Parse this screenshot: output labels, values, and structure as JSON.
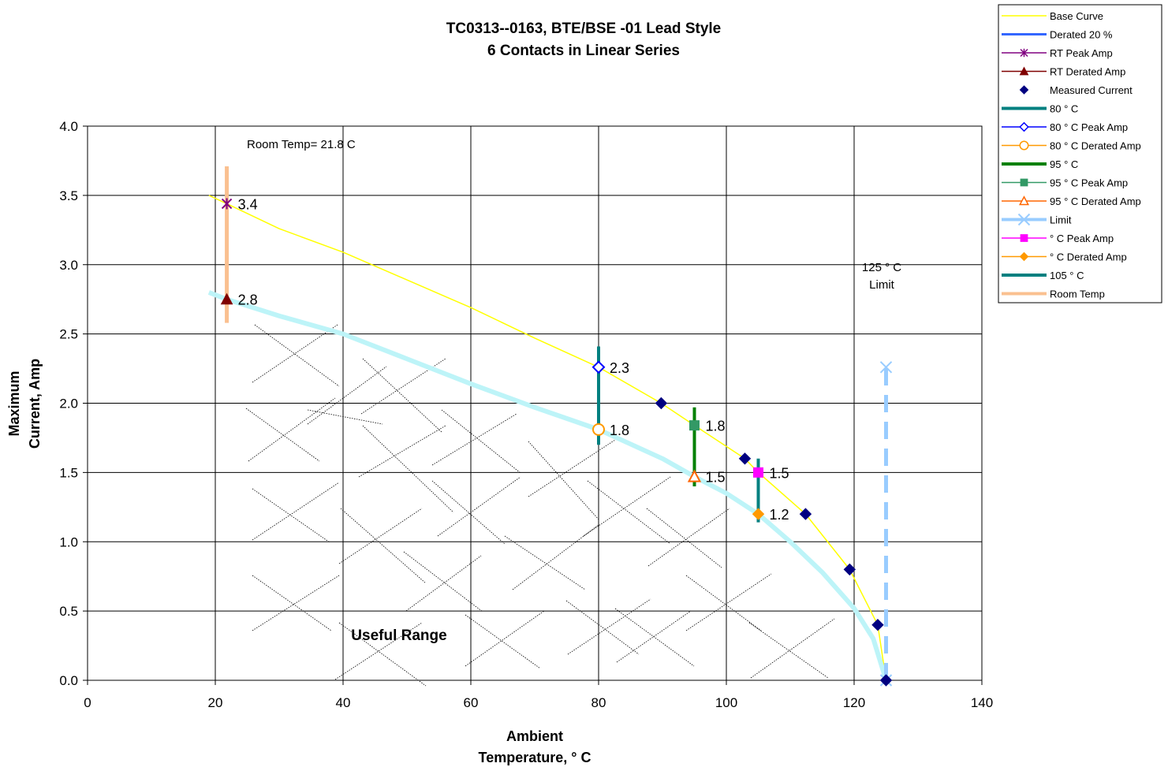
{
  "chart_data": {
    "type": "line",
    "title": "TC0313--0163, BTE/BSE -01 Lead Style",
    "subtitle": "6 Contacts in Linear Series",
    "xlabel": [
      "Ambient",
      "Temperature,  ° C"
    ],
    "ylabel": [
      "Maximum",
      "Current, Amp"
    ],
    "xlim": [
      0,
      140
    ],
    "ylim": [
      0,
      4
    ],
    "x_ticks": [
      "0",
      "20",
      "40",
      "60",
      "80",
      "100",
      "120",
      "140"
    ],
    "y_ticks": [
      "0.0",
      "0.5",
      "1.0",
      "1.5",
      "2.0",
      "2.5",
      "3.0",
      "3.5",
      "4.0"
    ],
    "grid": true,
    "legend_position": "top-right",
    "annotations": {
      "room_temp": "Room Temp= 21.8 C",
      "limit_line1": "125  ° C",
      "limit_line2": "Limit",
      "useful_range": "Useful Range"
    },
    "series": [
      {
        "name": "Base Curve",
        "color": "#ffff00",
        "kind": "line",
        "x": [
          19,
          21.8,
          30,
          40,
          50,
          60,
          70,
          80,
          89.8,
          95,
          102.9,
          105,
          112.4,
          119.3,
          123.7,
          125
        ],
        "y": [
          3.5,
          3.44,
          3.26,
          3.09,
          2.89,
          2.69,
          2.47,
          2.26,
          2.0,
          1.84,
          1.6,
          1.5,
          1.2,
          0.8,
          0.4,
          0.0
        ]
      },
      {
        "name": "Derated 20 %",
        "color": "#bdf4f8",
        "kind": "line",
        "x": [
          19,
          21.8,
          30,
          40,
          50,
          60,
          70,
          80,
          90,
          95,
          100,
          105,
          110,
          115,
          120,
          123,
          125
        ],
        "y": [
          2.8,
          2.75,
          2.63,
          2.5,
          2.32,
          2.14,
          1.97,
          1.81,
          1.6,
          1.47,
          1.35,
          1.2,
          1.0,
          0.78,
          0.52,
          0.3,
          0.0
        ]
      },
      {
        "name": "RT Peak Amp",
        "color": "#800080",
        "kind": "marker",
        "marker": "star",
        "x": [
          21.8
        ],
        "y": [
          3.44
        ],
        "labels": [
          "3.4"
        ]
      },
      {
        "name": "RT Derated Amp",
        "color": "#800000",
        "kind": "marker",
        "marker": "triangle",
        "x": [
          21.8
        ],
        "y": [
          2.75
        ],
        "labels": [
          "2.8"
        ]
      },
      {
        "name": "Measured Current",
        "color": "#000080",
        "kind": "marker",
        "marker": "diamond",
        "x": [
          89.8,
          102.9,
          112.4,
          119.3,
          123.7,
          125
        ],
        "y": [
          2.0,
          1.6,
          1.2,
          0.8,
          0.4,
          0.0
        ]
      },
      {
        "name": "80 ° C",
        "color": "#008080",
        "kind": "vline",
        "x": [
          80,
          80
        ],
        "y": [
          1.7,
          2.41
        ]
      },
      {
        "name": "80  ° C Peak Amp",
        "color": "#0000ff",
        "kind": "marker",
        "marker": "diamond-open",
        "x": [
          80
        ],
        "y": [
          2.26
        ],
        "labels": [
          "2.3"
        ]
      },
      {
        "name": "80  ° C Derated Amp",
        "color": "#ff9900",
        "kind": "marker",
        "marker": "circle-open",
        "x": [
          80
        ],
        "y": [
          1.81
        ],
        "labels": [
          "1.8"
        ]
      },
      {
        "name": "95  ° C",
        "color": "#008000",
        "kind": "vline",
        "x": [
          95,
          95
        ],
        "y": [
          1.4,
          1.97
        ]
      },
      {
        "name": "95  ° C Peak Amp",
        "color": "#339966",
        "kind": "marker",
        "marker": "square",
        "x": [
          95
        ],
        "y": [
          1.84
        ],
        "labels": [
          "1.8"
        ]
      },
      {
        "name": "95  ° C Derated Amp",
        "color": "#ff6600",
        "kind": "marker",
        "marker": "triangle-open",
        "x": [
          95
        ],
        "y": [
          1.47
        ],
        "labels": [
          "1.5"
        ]
      },
      {
        "name": "Limit",
        "color": "#99ccff",
        "kind": "vline-dashed",
        "x": [
          125,
          125
        ],
        "y": [
          0.0,
          2.26
        ]
      },
      {
        "name": "  ° C Peak Amp",
        "color": "#ff00ff",
        "kind": "marker",
        "marker": "square",
        "x": [
          105
        ],
        "y": [
          1.5
        ],
        "labels": [
          "1.5"
        ]
      },
      {
        "name": "  ° C Derated Amp",
        "color": "#ff9900",
        "kind": "marker",
        "marker": "diamond",
        "x": [
          105
        ],
        "y": [
          1.2
        ],
        "labels": [
          "1.2"
        ]
      },
      {
        "name": "105  ° C",
        "color": "#008080",
        "kind": "vline",
        "x": [
          105,
          105
        ],
        "y": [
          1.14,
          1.6
        ]
      },
      {
        "name": "Room Temp",
        "color": "#fac090",
        "kind": "vline",
        "x": [
          21.8,
          21.8
        ],
        "y": [
          2.58,
          3.71
        ]
      }
    ]
  }
}
